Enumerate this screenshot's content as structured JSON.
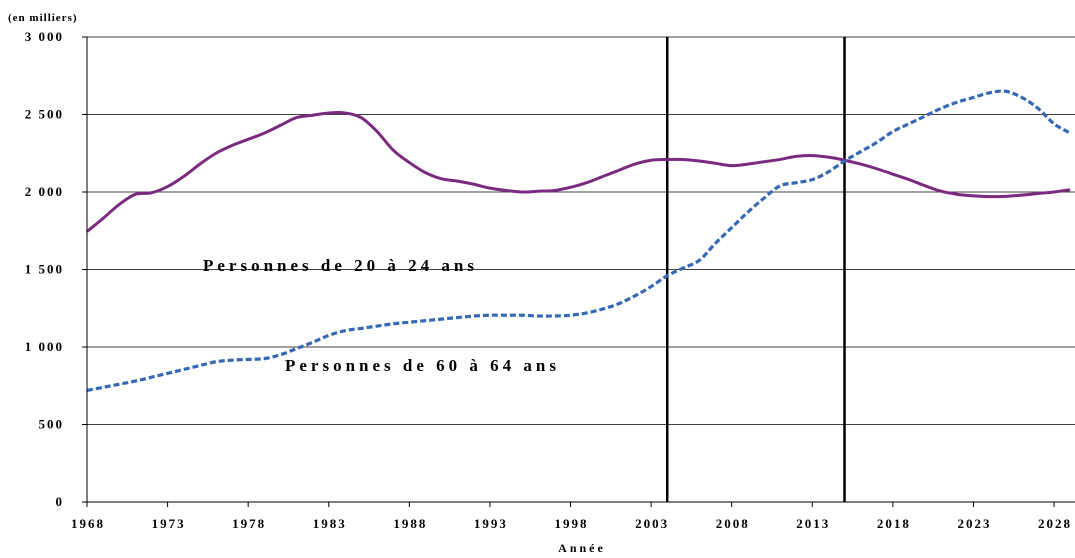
{
  "chart_data": {
    "type": "line",
    "unit_label": "(en milliers)",
    "xlabel": "Année",
    "ylim": [
      0,
      3000
    ],
    "y_ticks": [
      {
        "value": 0,
        "label": "0"
      },
      {
        "value": 500,
        "label": "500"
      },
      {
        "value": 1000,
        "label": "1 000"
      },
      {
        "value": 1500,
        "label": "1 500"
      },
      {
        "value": 2000,
        "label": "2 000"
      },
      {
        "value": 2500,
        "label": "2 500"
      },
      {
        "value": 3000,
        "label": "3 000"
      }
    ],
    "xlim": [
      1968,
      2029
    ],
    "x_ticks": [
      1968,
      1973,
      1978,
      1983,
      1988,
      1993,
      1998,
      2003,
      2008,
      2013,
      2018,
      2023,
      2028
    ],
    "vertical_markers": [
      2004,
      2015
    ],
    "series": [
      {
        "name": "Personnes de 20 à 24 ans",
        "style": "solid",
        "color": "#7a2b7f",
        "x": [
          1968,
          1969,
          1970,
          1971,
          1972,
          1973,
          1974,
          1975,
          1976,
          1977,
          1978,
          1979,
          1980,
          1981,
          1982,
          1983,
          1984,
          1985,
          1986,
          1987,
          1988,
          1989,
          1990,
          1991,
          1992,
          1993,
          1994,
          1995,
          1996,
          1997,
          1998,
          1999,
          2000,
          2001,
          2002,
          2003,
          2004,
          2005,
          2006,
          2007,
          2008,
          2009,
          2010,
          2011,
          2012,
          2013,
          2014,
          2015,
          2016,
          2017,
          2018,
          2019,
          2020,
          2021,
          2022,
          2023,
          2024,
          2025,
          2026,
          2027,
          2028,
          2029
        ],
        "values": [
          1745,
          1830,
          1920,
          1985,
          1995,
          2035,
          2100,
          2180,
          2250,
          2300,
          2340,
          2380,
          2430,
          2480,
          2495,
          2510,
          2510,
          2480,
          2390,
          2270,
          2190,
          2125,
          2085,
          2070,
          2050,
          2025,
          2010,
          2000,
          2005,
          2010,
          2030,
          2060,
          2100,
          2140,
          2180,
          2205,
          2210,
          2210,
          2200,
          2185,
          2170,
          2180,
          2195,
          2210,
          2230,
          2235,
          2225,
          2205,
          2180,
          2150,
          2115,
          2080,
          2040,
          2005,
          1985,
          1975,
          1970,
          1972,
          1980,
          1990,
          2000,
          2015
        ]
      },
      {
        "name": "Personnes de 60 à 64 ans",
        "style": "dashed",
        "color": "#3569b5",
        "x": [
          1968,
          1969,
          1970,
          1971,
          1972,
          1973,
          1974,
          1975,
          1976,
          1977,
          1978,
          1979,
          1980,
          1981,
          1982,
          1983,
          1984,
          1985,
          1986,
          1987,
          1988,
          1989,
          1990,
          1991,
          1992,
          1993,
          1994,
          1995,
          1996,
          1997,
          1998,
          1999,
          2000,
          2001,
          2002,
          2003,
          2004,
          2005,
          2006,
          2007,
          2008,
          2009,
          2010,
          2011,
          2012,
          2013,
          2014,
          2015,
          2016,
          2017,
          2018,
          2019,
          2020,
          2021,
          2022,
          2023,
          2024,
          2025,
          2026,
          2027,
          2028,
          2029
        ],
        "values": [
          720,
          740,
          760,
          780,
          805,
          830,
          855,
          880,
          905,
          915,
          920,
          925,
          950,
          990,
          1030,
          1075,
          1105,
          1120,
          1135,
          1150,
          1160,
          1170,
          1180,
          1190,
          1200,
          1205,
          1205,
          1205,
          1200,
          1200,
          1205,
          1220,
          1245,
          1280,
          1330,
          1390,
          1460,
          1510,
          1560,
          1670,
          1770,
          1870,
          1960,
          2040,
          2060,
          2080,
          2130,
          2200,
          2260,
          2320,
          2390,
          2440,
          2490,
          2540,
          2580,
          2610,
          2640,
          2650,
          2610,
          2540,
          2440,
          2380
        ]
      }
    ]
  }
}
